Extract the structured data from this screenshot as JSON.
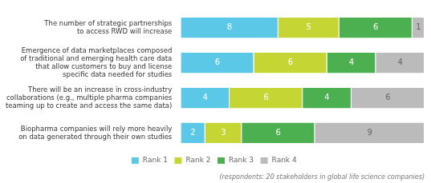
{
  "chart_data": {
    "type": "bar",
    "orientation": "horizontal",
    "stacked": true,
    "categories": [
      "The number of strategic partnerships\nto access RWD will increase",
      "Emergence of data marketplaces composed\nof traditional and emerging health care data\nthat allow customers to buy and license\nspecific data needed for studies",
      "There will be an increase in cross-industry\ncollaborations (e.g., multiple pharma companies\nteaming up to create and access the same data)",
      "Biopharma companies will rely more heavily\non data generated through their own studies"
    ],
    "series": [
      {
        "name": "Rank 1",
        "color": "#5bc8e8",
        "values": [
          8,
          6,
          4,
          2
        ]
      },
      {
        "name": "Rank 2",
        "color": "#c5d534",
        "values": [
          5,
          6,
          6,
          3
        ]
      },
      {
        "name": "Rank 3",
        "color": "#4caf50",
        "values": [
          6,
          4,
          4,
          6
        ]
      },
      {
        "name": "Rank 4",
        "color": "#bbbbbb",
        "values": [
          1,
          4,
          6,
          9
        ]
      }
    ],
    "xlim": [
      0,
      20
    ],
    "grid": false,
    "tick_labels": "y",
    "legend": "bottom",
    "data_labels": true,
    "annotations": [
      "(respondents: 20 stakeholders in global life science companies)"
    ]
  }
}
